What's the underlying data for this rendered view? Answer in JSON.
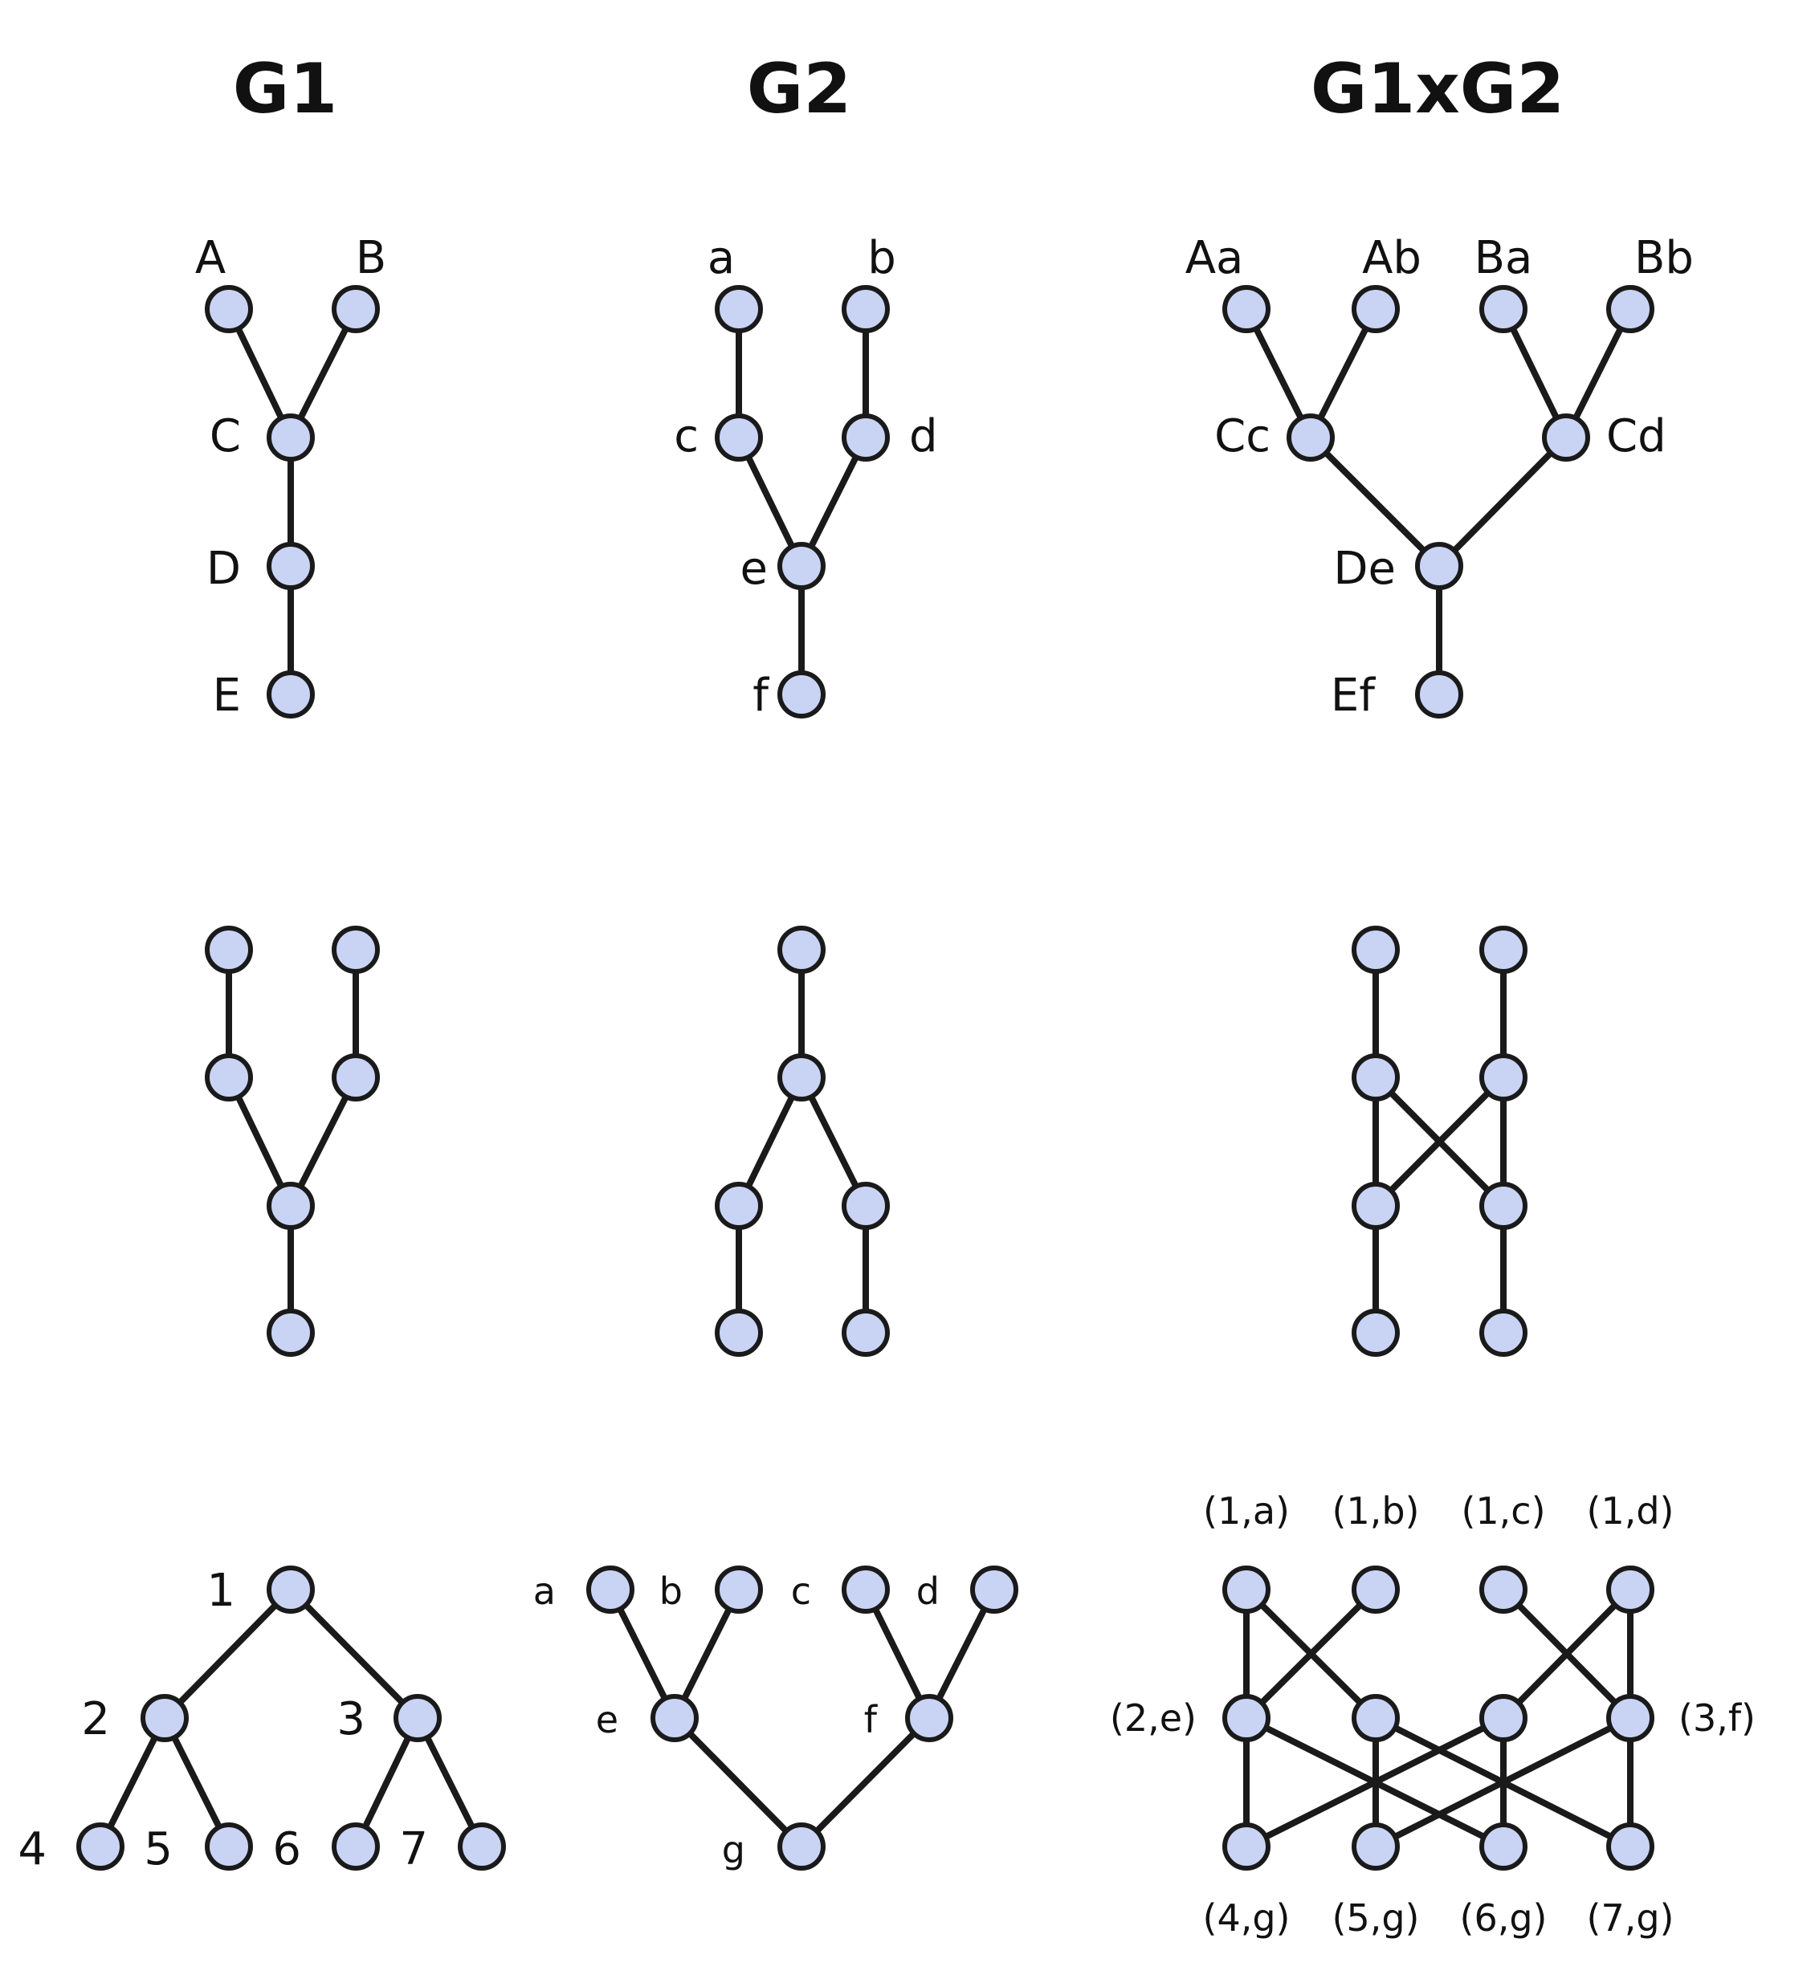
{
  "colors": {
    "node_fill": "#c9d4f5",
    "stroke": "#1a1a1a",
    "text": "#111111"
  },
  "titles": {
    "g1": "G1",
    "g2": "G2",
    "product": "G1xG2"
  },
  "row1": {
    "g1": {
      "labels": [
        "A",
        "B",
        "C",
        "D",
        "E"
      ],
      "edges": [
        [
          "A",
          "C"
        ],
        [
          "B",
          "C"
        ],
        [
          "C",
          "D"
        ],
        [
          "D",
          "E"
        ]
      ]
    },
    "g2": {
      "labels": [
        "a",
        "b",
        "c",
        "d",
        "e",
        "f"
      ],
      "edges": [
        [
          "a",
          "c"
        ],
        [
          "b",
          "d"
        ],
        [
          "c",
          "e"
        ],
        [
          "d",
          "e"
        ],
        [
          "e",
          "f"
        ]
      ]
    },
    "product": {
      "labels": [
        "Aa",
        "Ab",
        "Ba",
        "Bb",
        "Cc",
        "Cd",
        "De",
        "Ef"
      ],
      "edges": [
        [
          "Aa",
          "Cc"
        ],
        [
          "Ab",
          "Cc"
        ],
        [
          "Ba",
          "Cd"
        ],
        [
          "Bb",
          "Cd"
        ],
        [
          "Cc",
          "De"
        ],
        [
          "Cd",
          "De"
        ],
        [
          "De",
          "Ef"
        ]
      ]
    }
  },
  "row2": {
    "g1": {
      "node_count": 6,
      "edges": [
        [
          0,
          2
        ],
        [
          1,
          3
        ],
        [
          2,
          4
        ],
        [
          3,
          4
        ],
        [
          4,
          5
        ]
      ]
    },
    "g2": {
      "node_count": 6,
      "edges": [
        [
          0,
          1
        ],
        [
          1,
          2
        ],
        [
          1,
          3
        ],
        [
          2,
          4
        ],
        [
          3,
          5
        ]
      ]
    },
    "product": {
      "node_count": 8,
      "edges": [
        [
          0,
          2
        ],
        [
          1,
          3
        ],
        [
          2,
          4
        ],
        [
          3,
          5
        ],
        [
          2,
          5
        ],
        [
          3,
          4
        ],
        [
          4,
          6
        ],
        [
          5,
          7
        ]
      ]
    }
  },
  "row3": {
    "g1": {
      "labels": [
        "1",
        "2",
        "3",
        "4",
        "5",
        "6",
        "7"
      ],
      "edges": [
        [
          "1",
          "2"
        ],
        [
          "1",
          "3"
        ],
        [
          "2",
          "4"
        ],
        [
          "2",
          "5"
        ],
        [
          "3",
          "6"
        ],
        [
          "3",
          "7"
        ]
      ]
    },
    "g2": {
      "labels": [
        "a",
        "b",
        "c",
        "d",
        "e",
        "f",
        "g"
      ],
      "edges": [
        [
          "a",
          "e"
        ],
        [
          "b",
          "e"
        ],
        [
          "c",
          "f"
        ],
        [
          "d",
          "f"
        ],
        [
          "e",
          "g"
        ],
        [
          "f",
          "g"
        ]
      ]
    },
    "product": {
      "top_labels": [
        "(1,a)",
        "(1,b)",
        "(1,c)",
        "(1,d)"
      ],
      "mid_labels": [
        "(2,e)",
        "(3,f)"
      ],
      "bottom_labels": [
        "(4,g)",
        "(5,g)",
        "(6,g)",
        "(7,g)"
      ],
      "edges": [
        [
          "t0",
          "m0"
        ],
        [
          "t1",
          "m0"
        ],
        [
          "t0",
          "m1"
        ],
        [
          "t2",
          "m3"
        ],
        [
          "t3",
          "m2"
        ],
        [
          "t3",
          "m3"
        ],
        [
          "m0",
          "b0"
        ],
        [
          "m0",
          "b2"
        ],
        [
          "m1",
          "b1"
        ],
        [
          "m1",
          "b3"
        ],
        [
          "m2",
          "b0"
        ],
        [
          "m2",
          "b2"
        ],
        [
          "m3",
          "b1"
        ],
        [
          "m3",
          "b3"
        ]
      ]
    }
  }
}
